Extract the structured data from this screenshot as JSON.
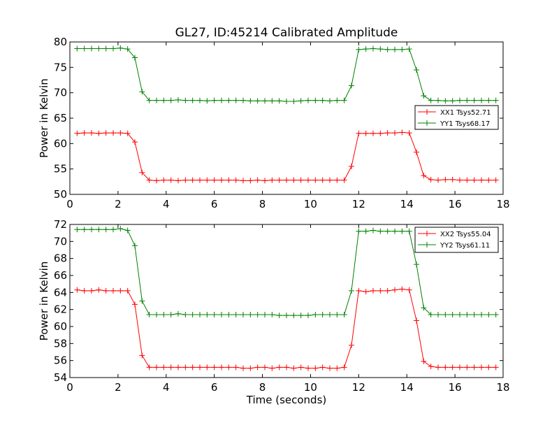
{
  "title": "GL27, ID:45214 Calibrated Amplitude",
  "colors": {
    "xx": "#ff0000",
    "yy": "#008000"
  },
  "chart_data": [
    {
      "type": "line",
      "xlabel": "",
      "ylabel": "Power in Kelvin",
      "xlim": [
        0,
        18
      ],
      "ylim": [
        50,
        80
      ],
      "xticks": [
        0,
        2,
        4,
        6,
        8,
        10,
        12,
        14,
        16,
        18
      ],
      "yticks": [
        50,
        55,
        60,
        65,
        70,
        75,
        80
      ],
      "legend_position": "center-right",
      "grid": false,
      "series": [
        {
          "name": "XX1 Tsys52.71",
          "color": "#ff0000",
          "x": [
            0.3,
            0.6,
            0.9,
            1.2,
            1.5,
            1.8,
            2.1,
            2.4,
            2.7,
            3.0,
            3.3,
            3.6,
            3.9,
            4.2,
            4.5,
            4.8,
            5.1,
            5.4,
            5.7,
            6.0,
            6.3,
            6.6,
            6.9,
            7.2,
            7.5,
            7.8,
            8.1,
            8.4,
            8.7,
            9.0,
            9.3,
            9.6,
            9.9,
            10.2,
            10.5,
            10.8,
            11.1,
            11.4,
            11.7,
            12.0,
            12.3,
            12.6,
            12.9,
            13.2,
            13.5,
            13.8,
            14.1,
            14.4,
            14.7,
            15.0,
            15.3,
            15.6,
            15.9,
            16.2,
            16.5,
            16.8,
            17.1,
            17.4,
            17.7
          ],
          "y": [
            62.0,
            62.1,
            62.1,
            62.0,
            62.1,
            62.1,
            62.1,
            62.0,
            60.3,
            54.3,
            52.8,
            52.7,
            52.8,
            52.8,
            52.7,
            52.8,
            52.8,
            52.8,
            52.8,
            52.8,
            52.8,
            52.8,
            52.8,
            52.7,
            52.7,
            52.8,
            52.7,
            52.8,
            52.8,
            52.8,
            52.8,
            52.8,
            52.8,
            52.8,
            52.8,
            52.8,
            52.8,
            52.8,
            55.5,
            62.0,
            62.0,
            62.0,
            62.0,
            62.1,
            62.1,
            62.2,
            62.1,
            58.3,
            53.7,
            52.9,
            52.8,
            52.9,
            52.9,
            52.8,
            52.8,
            52.8,
            52.8,
            52.8,
            52.8
          ]
        },
        {
          "name": "YY1 Tsys68.17",
          "color": "#008000",
          "x": [
            0.3,
            0.6,
            0.9,
            1.2,
            1.5,
            1.8,
            2.1,
            2.4,
            2.7,
            3.0,
            3.3,
            3.6,
            3.9,
            4.2,
            4.5,
            4.8,
            5.1,
            5.4,
            5.7,
            6.0,
            6.3,
            6.6,
            6.9,
            7.2,
            7.5,
            7.8,
            8.1,
            8.4,
            8.7,
            9.0,
            9.3,
            9.6,
            9.9,
            10.2,
            10.5,
            10.8,
            11.1,
            11.4,
            11.7,
            12.0,
            12.3,
            12.6,
            12.9,
            13.2,
            13.5,
            13.8,
            14.1,
            14.4,
            14.7,
            15.0,
            15.3,
            15.6,
            15.9,
            16.2,
            16.5,
            16.8,
            17.1,
            17.4,
            17.7
          ],
          "y": [
            78.7,
            78.7,
            78.7,
            78.7,
            78.7,
            78.7,
            78.8,
            78.6,
            76.9,
            70.2,
            68.5,
            68.5,
            68.5,
            68.5,
            68.6,
            68.5,
            68.5,
            68.5,
            68.4,
            68.5,
            68.5,
            68.5,
            68.5,
            68.5,
            68.4,
            68.4,
            68.4,
            68.4,
            68.4,
            68.3,
            68.3,
            68.4,
            68.5,
            68.5,
            68.5,
            68.4,
            68.5,
            68.5,
            71.4,
            78.5,
            78.6,
            78.7,
            78.6,
            78.5,
            78.5,
            78.5,
            78.6,
            74.5,
            69.4,
            68.5,
            68.5,
            68.4,
            68.4,
            68.5,
            68.5,
            68.5,
            68.5,
            68.5,
            68.5
          ]
        }
      ]
    },
    {
      "type": "line",
      "xlabel": "Time (seconds)",
      "ylabel": "Power in Kelvin",
      "xlim": [
        0,
        18
      ],
      "ylim": [
        54,
        72
      ],
      "xticks": [
        0,
        2,
        4,
        6,
        8,
        10,
        12,
        14,
        16,
        18
      ],
      "yticks": [
        54,
        56,
        58,
        60,
        62,
        64,
        66,
        68,
        70,
        72
      ],
      "legend_position": "top-right",
      "grid": false,
      "series": [
        {
          "name": "XX2 Tsys55.04",
          "color": "#ff0000",
          "x": [
            0.3,
            0.6,
            0.9,
            1.2,
            1.5,
            1.8,
            2.1,
            2.4,
            2.7,
            3.0,
            3.3,
            3.6,
            3.9,
            4.2,
            4.5,
            4.8,
            5.1,
            5.4,
            5.7,
            6.0,
            6.3,
            6.6,
            6.9,
            7.2,
            7.5,
            7.8,
            8.1,
            8.4,
            8.7,
            9.0,
            9.3,
            9.6,
            9.9,
            10.2,
            10.5,
            10.8,
            11.1,
            11.4,
            11.7,
            12.0,
            12.3,
            12.6,
            12.9,
            13.2,
            13.5,
            13.8,
            14.1,
            14.4,
            14.7,
            15.0,
            15.3,
            15.6,
            15.9,
            16.2,
            16.5,
            16.8,
            17.1,
            17.4,
            17.7
          ],
          "y": [
            64.3,
            64.2,
            64.2,
            64.3,
            64.2,
            64.2,
            64.2,
            64.2,
            62.6,
            56.6,
            55.2,
            55.2,
            55.2,
            55.2,
            55.2,
            55.2,
            55.2,
            55.2,
            55.2,
            55.2,
            55.2,
            55.2,
            55.2,
            55.1,
            55.1,
            55.2,
            55.2,
            55.1,
            55.2,
            55.2,
            55.1,
            55.2,
            55.1,
            55.1,
            55.2,
            55.1,
            55.1,
            55.2,
            57.8,
            64.2,
            64.1,
            64.2,
            64.2,
            64.2,
            64.3,
            64.4,
            64.3,
            60.7,
            55.9,
            55.3,
            55.2,
            55.2,
            55.2,
            55.2,
            55.2,
            55.2,
            55.2,
            55.2,
            55.2
          ]
        },
        {
          "name": "YY2 Tsys61.11",
          "color": "#008000",
          "x": [
            0.3,
            0.6,
            0.9,
            1.2,
            1.5,
            1.8,
            2.1,
            2.4,
            2.7,
            3.0,
            3.3,
            3.6,
            3.9,
            4.2,
            4.5,
            4.8,
            5.1,
            5.4,
            5.7,
            6.0,
            6.3,
            6.6,
            6.9,
            7.2,
            7.5,
            7.8,
            8.1,
            8.4,
            8.7,
            9.0,
            9.3,
            9.6,
            9.9,
            10.2,
            10.5,
            10.8,
            11.1,
            11.4,
            11.7,
            12.0,
            12.3,
            12.6,
            12.9,
            13.2,
            13.5,
            13.8,
            14.1,
            14.4,
            14.7,
            15.0,
            15.3,
            15.6,
            15.9,
            16.2,
            16.5,
            16.8,
            17.1,
            17.4,
            17.7
          ],
          "y": [
            71.4,
            71.4,
            71.4,
            71.4,
            71.4,
            71.4,
            71.5,
            71.3,
            69.5,
            63.0,
            61.4,
            61.4,
            61.4,
            61.4,
            61.5,
            61.4,
            61.4,
            61.4,
            61.4,
            61.4,
            61.4,
            61.4,
            61.4,
            61.4,
            61.4,
            61.4,
            61.4,
            61.4,
            61.3,
            61.3,
            61.3,
            61.3,
            61.3,
            61.4,
            61.4,
            61.4,
            61.4,
            61.4,
            64.2,
            71.2,
            71.2,
            71.3,
            71.2,
            71.2,
            71.2,
            71.2,
            71.2,
            67.3,
            62.2,
            61.4,
            61.4,
            61.4,
            61.4,
            61.4,
            61.4,
            61.4,
            61.4,
            61.4,
            61.4
          ]
        }
      ]
    }
  ]
}
